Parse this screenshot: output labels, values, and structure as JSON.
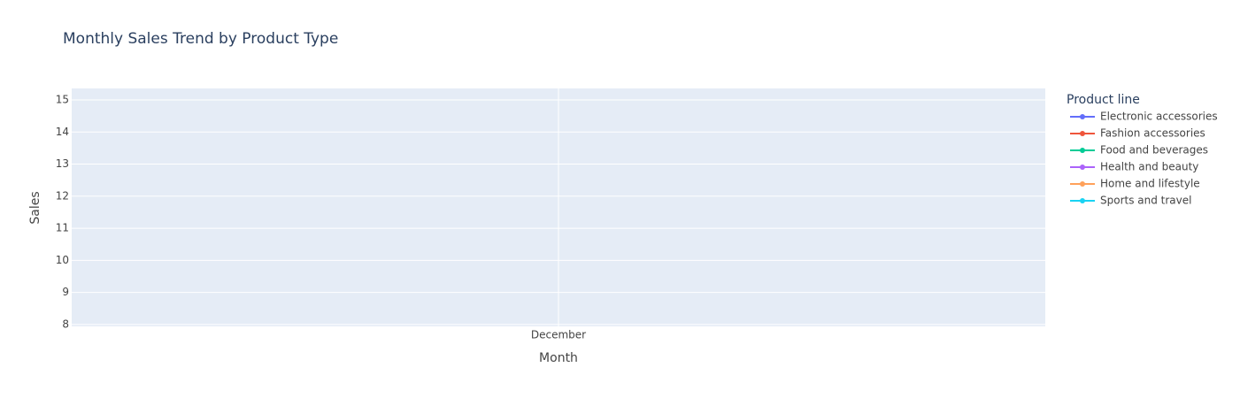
{
  "chart_data": {
    "type": "line",
    "title": "Monthly Sales Trend by Product Type",
    "x_label": "Month",
    "y_label": "Sales",
    "legend_title": "Product line",
    "categories": [
      "December"
    ],
    "series": [
      {
        "name": "Electronic accessories",
        "color": "#636efa",
        "values": [
          null
        ]
      },
      {
        "name": "Fashion accessories",
        "color": "#EF553B",
        "values": [
          null
        ]
      },
      {
        "name": "Food and beverages",
        "color": "#00cc96",
        "values": [
          null
        ]
      },
      {
        "name": "Health and beauty",
        "color": "#ab63fa",
        "values": [
          null
        ]
      },
      {
        "name": "Home and lifestyle",
        "color": "#FFA15A",
        "values": [
          null
        ]
      },
      {
        "name": "Sports and travel",
        "color": "#19d3f3",
        "values": [
          null
        ]
      }
    ],
    "ylim": [
      7.94,
      15.36
    ],
    "yticks": [
      8,
      9,
      10,
      11,
      12,
      13,
      14,
      15
    ],
    "grid": true,
    "legend": "right"
  }
}
